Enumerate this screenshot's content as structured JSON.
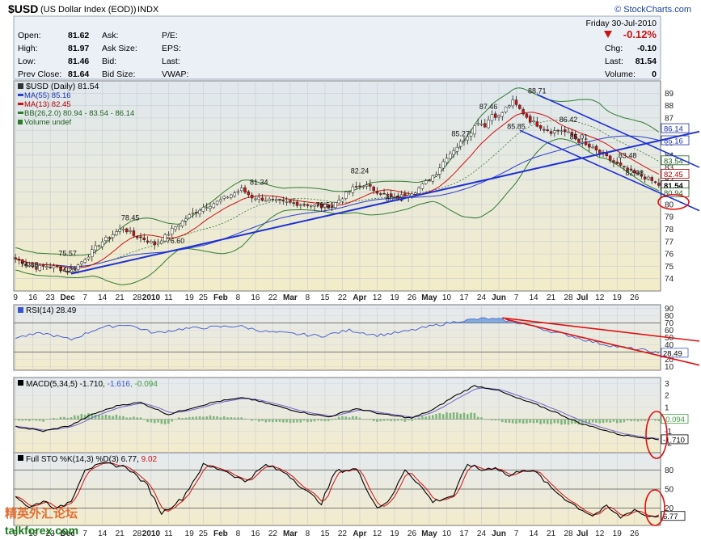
{
  "header": {
    "symbol": "$USD",
    "name": "(US Dollar Index (EOD))",
    "exchange": "INDX",
    "brand": "© StockCharts.com",
    "date": "Friday  30-Jul-2010",
    "pct_change": "-0.12%",
    "brand_color": "#1a3fa0",
    "down_color": "#cc1111"
  },
  "quote": {
    "open_label": "Open:",
    "open": "81.62",
    "high_label": "High:",
    "high": "81.97",
    "low_label": "Low:",
    "low": "81.46",
    "prev_label": "Prev Close:",
    "prev": "81.64",
    "ask_label": "Ask:",
    "ask": "",
    "ask_size_label": "Ask Size:",
    "ask_size": "",
    "bid_label": "Bid:",
    "bid": "",
    "bid_size_label": "Bid Size:",
    "bid_size": "",
    "pe_label": "P/E:",
    "eps_label": "EPS:",
    "last_label": "Last:",
    "vwap_label": "VWAP:",
    "chg_label": "Chg:",
    "chg": "-0.10",
    "last2_label": "Last:",
    "last2": "81.54",
    "volume_label": "Volume:",
    "volume": "0"
  },
  "legend": {
    "main": "$USD (Daily) 81.54",
    "ma55": "MA(55) 85.16",
    "ma13": "MA(13) 82.45",
    "bb": "BB(26,2.0) 80.94 - 83.54 - 86.14",
    "volume": "Volume undef",
    "rsi": "RSI(14) 28.49",
    "macd_prefix": "MACD(5,34,5) -1.710, ",
    "macd_sig": "-1.616",
    "macd_hist": ", -0.094",
    "sto_prefix": "Full STO %K(14,3) %D(3) 6.77, ",
    "sto_d": "9.02"
  },
  "chart_data": [
    {
      "type": "candlestick",
      "panel": "price",
      "ylim": [
        73,
        90
      ],
      "y_ticks": [
        74,
        75,
        76,
        77,
        78,
        79,
        80,
        81,
        82,
        83,
        84,
        85,
        86,
        87,
        88,
        89
      ],
      "x_tick_labels": [
        "9",
        "16",
        "23",
        "Dec",
        "7",
        "14",
        "21",
        "28",
        "2010",
        "11",
        "19",
        "25",
        "Feb",
        "8",
        "16",
        "22",
        "Mar",
        "8",
        "15",
        "22",
        "Apr",
        "12",
        "19",
        "26",
        "May",
        "10",
        "17",
        "24",
        "Jun",
        "7",
        "14",
        "21",
        "28",
        "Jul",
        "12",
        "19",
        "26"
      ],
      "x_tick_days": [
        0,
        5,
        10,
        15,
        20,
        25,
        30,
        35,
        39,
        44,
        50,
        54,
        59,
        64,
        69,
        74,
        79,
        84,
        89,
        94,
        99,
        104,
        109,
        114,
        119,
        124,
        129,
        134,
        139,
        144,
        149,
        154,
        159,
        163,
        168,
        173,
        178
      ],
      "n_days": 186,
      "close_anchors": [
        [
          0,
          75.6
        ],
        [
          3,
          75.2
        ],
        [
          6,
          74.9
        ],
        [
          9,
          75.0
        ],
        [
          12,
          74.9
        ],
        [
          15,
          74.6
        ],
        [
          18,
          75.1
        ],
        [
          21,
          75.9
        ],
        [
          24,
          76.8
        ],
        [
          28,
          77.6
        ],
        [
          31,
          78.1
        ],
        [
          34,
          77.5
        ],
        [
          37,
          77.2
        ],
        [
          40,
          76.8
        ],
        [
          43,
          77.4
        ],
        [
          46,
          78.2
        ],
        [
          50,
          79.1
        ],
        [
          54,
          79.8
        ],
        [
          58,
          80.2
        ],
        [
          62,
          80.8
        ],
        [
          65,
          81.2
        ],
        [
          68,
          80.6
        ],
        [
          72,
          80.4
        ],
        [
          76,
          80.2
        ],
        [
          80,
          80.1
        ],
        [
          84,
          80.0
        ],
        [
          88,
          79.8
        ],
        [
          91,
          79.9
        ],
        [
          94,
          80.6
        ],
        [
          97,
          81.3
        ],
        [
          100,
          81.6
        ],
        [
          103,
          81.2
        ],
        [
          106,
          80.8
        ],
        [
          109,
          80.5
        ],
        [
          112,
          80.8
        ],
        [
          115,
          81.1
        ],
        [
          118,
          81.8
        ],
        [
          121,
          82.6
        ],
        [
          124,
          83.9
        ],
        [
          127,
          84.7
        ],
        [
          130,
          85.6
        ],
        [
          133,
          86.7
        ],
        [
          135,
          86.4
        ],
        [
          137,
          87.3
        ],
        [
          139,
          87.1
        ],
        [
          141,
          87.8
        ],
        [
          143,
          88.3
        ],
        [
          145,
          87.7
        ],
        [
          148,
          86.8
        ],
        [
          151,
          86.3
        ],
        [
          154,
          85.9
        ],
        [
          157,
          86.0
        ],
        [
          160,
          85.6
        ],
        [
          163,
          84.9
        ],
        [
          166,
          84.5
        ],
        [
          169,
          84.0
        ],
        [
          172,
          83.4
        ],
        [
          175,
          82.9
        ],
        [
          178,
          82.5
        ],
        [
          181,
          82.2
        ],
        [
          183,
          81.9
        ],
        [
          185,
          81.54
        ]
      ],
      "annotations": [
        {
          "label": "74.68",
          "day": 4,
          "price": 74.68
        },
        {
          "label": "74.23",
          "day": 15,
          "price": 74.23
        },
        {
          "label": "75.57",
          "day": 15,
          "price": 75.57
        },
        {
          "label": "78.45",
          "day": 33,
          "price": 78.45
        },
        {
          "label": "76.60",
          "day": 46,
          "price": 76.6
        },
        {
          "label": "81.34",
          "day": 70,
          "price": 81.34
        },
        {
          "label": "79.51",
          "day": 89,
          "price": 79.51
        },
        {
          "label": "82.24",
          "day": 99,
          "price": 82.24
        },
        {
          "label": "80.03",
          "day": 109,
          "price": 80.03
        },
        {
          "label": "85.27",
          "day": 128,
          "price": 85.27
        },
        {
          "label": "87.46",
          "day": 136,
          "price": 87.46
        },
        {
          "label": "85.85",
          "day": 144,
          "price": 85.85
        },
        {
          "label": "88.71",
          "day": 150,
          "price": 88.71
        },
        {
          "label": "86.42",
          "day": 159,
          "price": 86.42
        },
        {
          "label": "85.01",
          "day": 162,
          "price": 85.01
        },
        {
          "label": "83.48",
          "day": 176,
          "price": 83.48
        },
        {
          "label": "82.08",
          "day": 178,
          "price": 82.08
        }
      ],
      "right_labels": [
        "86.14",
        "85.16",
        "83.54",
        "82.45",
        "81.54",
        "80.94"
      ],
      "right_label_values": [
        86.14,
        85.16,
        83.54,
        82.45,
        81.54,
        80.94
      ]
    },
    {
      "type": "line",
      "panel": "rsi",
      "name": "RSI(14)",
      "ylim": [
        5,
        95
      ],
      "y_ticks": [
        10,
        20,
        30,
        40,
        50,
        60,
        70,
        80,
        90
      ],
      "levels": [
        30,
        70
      ],
      "last": "28.49",
      "anchors": [
        [
          0,
          50
        ],
        [
          8,
          56
        ],
        [
          16,
          47
        ],
        [
          24,
          63
        ],
        [
          32,
          68
        ],
        [
          40,
          56
        ],
        [
          48,
          62
        ],
        [
          56,
          64
        ],
        [
          64,
          66
        ],
        [
          72,
          58
        ],
        [
          80,
          55
        ],
        [
          88,
          52
        ],
        [
          96,
          60
        ],
        [
          104,
          53
        ],
        [
          112,
          58
        ],
        [
          120,
          66
        ],
        [
          128,
          73
        ],
        [
          135,
          76
        ],
        [
          140,
          74
        ],
        [
          145,
          70
        ],
        [
          150,
          64
        ],
        [
          155,
          57
        ],
        [
          160,
          52
        ],
        [
          165,
          45
        ],
        [
          170,
          40
        ],
        [
          175,
          36
        ],
        [
          180,
          33
        ],
        [
          185,
          28.49
        ]
      ]
    },
    {
      "type": "line",
      "panel": "macd",
      "name": "MACD(5,34,5)",
      "ylim": [
        -2.8,
        3.5
      ],
      "y_ticks": [
        -2,
        -1,
        1,
        2,
        3
      ],
      "last": "-1.710",
      "signal_last": "-1.616",
      "hist_last": "-0.094",
      "anchors": [
        [
          0,
          -0.6
        ],
        [
          8,
          -1.0
        ],
        [
          16,
          -0.5
        ],
        [
          22,
          0.4
        ],
        [
          30,
          1.2
        ],
        [
          36,
          1.4
        ],
        [
          44,
          0.4
        ],
        [
          50,
          0.9
        ],
        [
          58,
          1.5
        ],
        [
          66,
          1.8
        ],
        [
          74,
          1.2
        ],
        [
          82,
          0.6
        ],
        [
          90,
          0.2
        ],
        [
          98,
          0.9
        ],
        [
          106,
          0.4
        ],
        [
          114,
          0.1
        ],
        [
          120,
          0.8
        ],
        [
          126,
          1.9
        ],
        [
          132,
          2.8
        ],
        [
          138,
          2.5
        ],
        [
          144,
          1.8
        ],
        [
          150,
          1.2
        ],
        [
          156,
          0.5
        ],
        [
          162,
          -0.3
        ],
        [
          168,
          -0.8
        ],
        [
          174,
          -1.3
        ],
        [
          180,
          -1.5
        ],
        [
          185,
          -1.71
        ]
      ]
    },
    {
      "type": "line",
      "panel": "stochastic",
      "name": "Full STO %K(14,3) %D(3)",
      "ylim": [
        0,
        100
      ],
      "y_ticks": [
        20,
        50,
        80
      ],
      "levels": [
        20,
        50,
        80
      ],
      "k_last": "6.77",
      "d_last": "9.02",
      "anchors": [
        [
          0,
          40
        ],
        [
          4,
          20
        ],
        [
          8,
          32
        ],
        [
          12,
          18
        ],
        [
          16,
          32
        ],
        [
          20,
          82
        ],
        [
          26,
          90
        ],
        [
          32,
          85
        ],
        [
          38,
          55
        ],
        [
          42,
          12
        ],
        [
          48,
          35
        ],
        [
          54,
          88
        ],
        [
          60,
          80
        ],
        [
          66,
          62
        ],
        [
          72,
          88
        ],
        [
          78,
          75
        ],
        [
          84,
          45
        ],
        [
          88,
          28
        ],
        [
          92,
          78
        ],
        [
          98,
          82
        ],
        [
          104,
          20
        ],
        [
          108,
          35
        ],
        [
          112,
          82
        ],
        [
          116,
          58
        ],
        [
          120,
          30
        ],
        [
          126,
          40
        ],
        [
          130,
          90
        ],
        [
          134,
          80
        ],
        [
          138,
          85
        ],
        [
          142,
          70
        ],
        [
          146,
          82
        ],
        [
          150,
          75
        ],
        [
          154,
          52
        ],
        [
          158,
          35
        ],
        [
          162,
          20
        ],
        [
          166,
          8
        ],
        [
          170,
          22
        ],
        [
          174,
          5
        ],
        [
          178,
          18
        ],
        [
          181,
          8
        ],
        [
          185,
          6.77
        ]
      ]
    }
  ],
  "watermark": {
    "cn": "精英外汇论坛",
    "url": "talkforex.com"
  }
}
